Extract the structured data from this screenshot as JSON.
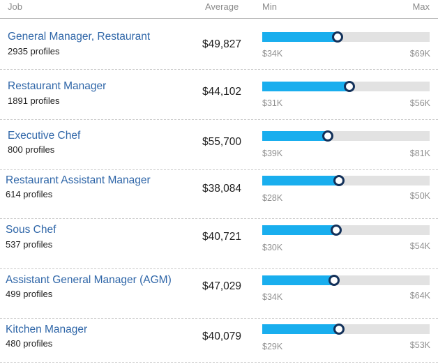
{
  "header": {
    "job": "Job",
    "average": "Average",
    "min": "Min",
    "max": "Max"
  },
  "rows": [
    {
      "title": "General Manager, Restaurant",
      "profiles": "2935 profiles",
      "average": "$49,827",
      "min": "$34K",
      "max": "$69K",
      "marker_fraction": 0.45
    },
    {
      "title": "Restaurant Manager",
      "profiles": "1891 profiles",
      "average": "$44,102",
      "min": "$31K",
      "max": "$56K",
      "marker_fraction": 0.52
    },
    {
      "title": "Executive Chef",
      "profiles": "800 profiles",
      "average": "$55,700",
      "min": "$39K",
      "max": "$81K",
      "marker_fraction": 0.39
    },
    {
      "title": "Restaurant Assistant Manager",
      "profiles": "614 profiles",
      "average": "$38,084",
      "min": "$28K",
      "max": "$50K",
      "marker_fraction": 0.46
    },
    {
      "title": "Sous Chef",
      "profiles": "537 profiles",
      "average": "$40,721",
      "min": "$30K",
      "max": "$54K",
      "marker_fraction": 0.44
    },
    {
      "title": "Assistant General Manager (AGM)",
      "profiles": "499 profiles",
      "average": "$47,029",
      "min": "$34K",
      "max": "$64K",
      "marker_fraction": 0.43
    },
    {
      "title": "Kitchen Manager",
      "profiles": "480 profiles",
      "average": "$40,079",
      "min": "$29K",
      "max": "$53K",
      "marker_fraction": 0.46
    }
  ],
  "colors": {
    "bar_fill": "#19aeee",
    "bar_track": "#e2e2e2",
    "marker_ring": "#13315a",
    "job_link": "#2f66a8"
  }
}
